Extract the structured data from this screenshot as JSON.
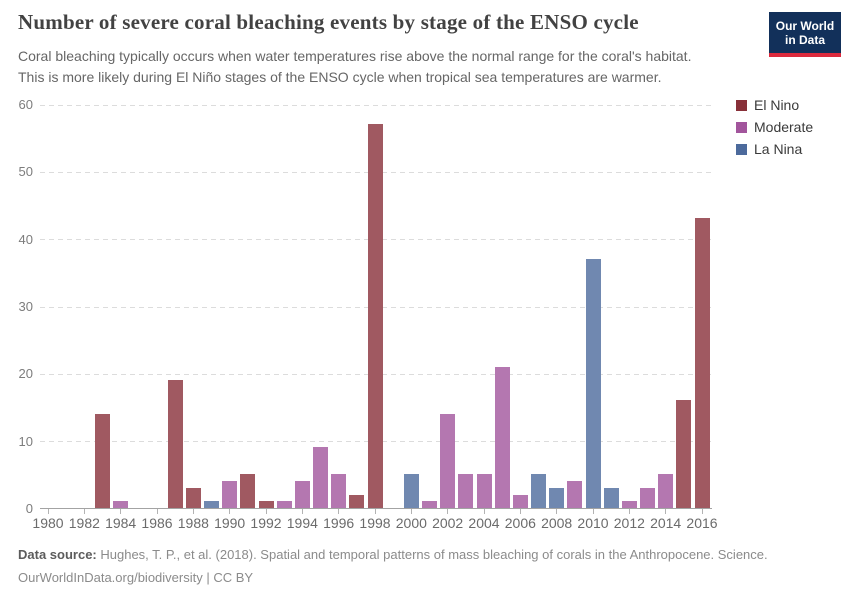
{
  "header": {
    "title": "Number of severe coral bleaching events by stage of the ENSO cycle",
    "subtitle_lines": [
      "Coral bleaching typically occurs when water temperatures rise above the normal range for the coral's habitat.",
      "This is more likely during El Niño stages of the ENSO cycle when tropical sea temperatures are warmer."
    ],
    "logo": {
      "line1": "Our World",
      "line2": "in Data",
      "bg_color": "#12305a",
      "stripe_color": "#dc2a3d"
    }
  },
  "chart_data": {
    "type": "bar",
    "title": "Number of severe coral bleaching events by stage of the ENSO cycle",
    "xlabel": "",
    "ylabel": "",
    "ylim": [
      0,
      60
    ],
    "yticks": [
      0,
      10,
      20,
      30,
      40,
      50,
      60
    ],
    "xticks": [
      1980,
      1982,
      1984,
      1986,
      1988,
      1990,
      1992,
      1994,
      1996,
      1998,
      2000,
      2002,
      2004,
      2006,
      2008,
      2010,
      2012,
      2014,
      2016
    ],
    "x_range": [
      1980,
      2016
    ],
    "grid": "horizontal-dashed",
    "legend_position": "top-right",
    "categories": [
      {
        "name": "El Nino",
        "color": "#883039",
        "bar_fill": "#a05961"
      },
      {
        "name": "Moderate",
        "color": "#a2559c",
        "bar_fill": "#b477b0"
      },
      {
        "name": "La Nina",
        "color": "#4c6a9c",
        "bar_fill": "#7088b0"
      }
    ],
    "bars": [
      {
        "year": 1983,
        "value": 14,
        "category": "El Nino"
      },
      {
        "year": 1984,
        "value": 1,
        "category": "Moderate"
      },
      {
        "year": 1987,
        "value": 19,
        "category": "El Nino"
      },
      {
        "year": 1988,
        "value": 3,
        "category": "El Nino"
      },
      {
        "year": 1989,
        "value": 1,
        "category": "La Nina"
      },
      {
        "year": 1990,
        "value": 4,
        "category": "Moderate"
      },
      {
        "year": 1991,
        "value": 5,
        "category": "El Nino"
      },
      {
        "year": 1992,
        "value": 1,
        "category": "El Nino"
      },
      {
        "year": 1993,
        "value": 1,
        "category": "Moderate"
      },
      {
        "year": 1994,
        "value": 4,
        "category": "Moderate"
      },
      {
        "year": 1995,
        "value": 9,
        "category": "Moderate"
      },
      {
        "year": 1996,
        "value": 5,
        "category": "Moderate"
      },
      {
        "year": 1997,
        "value": 2,
        "category": "El Nino"
      },
      {
        "year": 1998,
        "value": 57,
        "category": "El Nino"
      },
      {
        "year": 2000,
        "value": 5,
        "category": "La Nina"
      },
      {
        "year": 2001,
        "value": 1,
        "category": "Moderate"
      },
      {
        "year": 2002,
        "value": 14,
        "category": "Moderate"
      },
      {
        "year": 2003,
        "value": 5,
        "category": "Moderate"
      },
      {
        "year": 2004,
        "value": 5,
        "category": "Moderate"
      },
      {
        "year": 2005,
        "value": 21,
        "category": "Moderate"
      },
      {
        "year": 2006,
        "value": 2,
        "category": "Moderate"
      },
      {
        "year": 2007,
        "value": 5,
        "category": "La Nina"
      },
      {
        "year": 2008,
        "value": 3,
        "category": "La Nina"
      },
      {
        "year": 2009,
        "value": 4,
        "category": "Moderate"
      },
      {
        "year": 2010,
        "value": 37,
        "category": "La Nina"
      },
      {
        "year": 2011,
        "value": 3,
        "category": "La Nina"
      },
      {
        "year": 2012,
        "value": 1,
        "category": "Moderate"
      },
      {
        "year": 2013,
        "value": 3,
        "category": "Moderate"
      },
      {
        "year": 2014,
        "value": 5,
        "category": "Moderate"
      },
      {
        "year": 2015,
        "value": 16,
        "category": "El Nino"
      },
      {
        "year": 2016,
        "value": 43,
        "category": "El Nino"
      }
    ]
  },
  "legend": {
    "items": [
      {
        "label": "El Nino",
        "color": "#883039"
      },
      {
        "label": "Moderate",
        "color": "#a2559c"
      },
      {
        "label": "La Nina",
        "color": "#4c6a9c"
      }
    ]
  },
  "footer": {
    "source_label": "Data source:",
    "source_text": " Hughes, T. P., et al. (2018). Spatial and temporal patterns of mass bleaching of corals in the Anthropocene. Science.",
    "license_text": "OurWorldInData.org/biodiversity | CC BY"
  }
}
